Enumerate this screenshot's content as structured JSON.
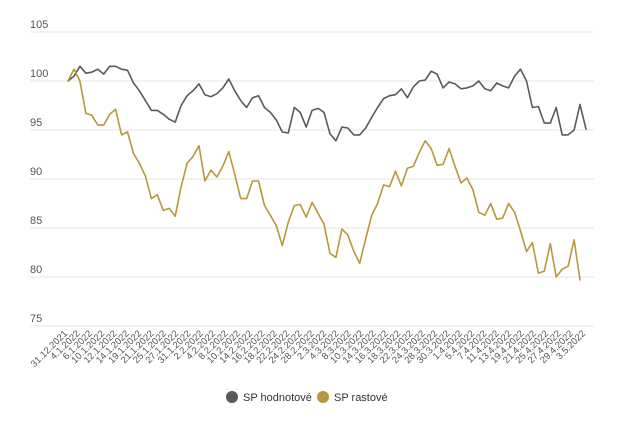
{
  "chart_data": {
    "type": "line",
    "title": "",
    "xlabel": "",
    "ylabel": "",
    "ylim": [
      75,
      105
    ],
    "yticks": [
      75,
      80,
      85,
      90,
      95,
      100,
      105
    ],
    "grid": true,
    "legend_position": "bottom",
    "x_tick_labels": [
      "31.12.2021",
      "4.1.2022",
      "6.1.2022",
      "10.1.2022",
      "12.1.2022",
      "14.1.2022",
      "19.1.2022",
      "21.1.2022",
      "25.1.2022",
      "27.1.2022",
      "31.1.2022",
      "2.2.2022",
      "4.2.2022",
      "8.2.2022",
      "10.2.2022",
      "14.2.2022",
      "16.2.2022",
      "18.2.2022",
      "22.2.2022",
      "24.2.2022",
      "28.2.2022",
      "2.3.2022",
      "4.3.2022",
      "8.3.2022",
      "10.3.2022",
      "14.3.2022",
      "16.3.2022",
      "18.3.2022",
      "22.3.2022",
      "24.3.2022",
      "28.3.2022",
      "30.3.2022",
      "1.4.2022",
      "5.4.2022",
      "7.4.2022",
      "11.4.2022",
      "13.4.2022",
      "19.4.2022",
      "21.4.2022",
      "25.4.2022",
      "27.4.2022",
      "29.4.2022",
      "3.5.2022"
    ],
    "series": [
      {
        "name": "SP hodnotové",
        "color": "#5a5a5a",
        "values": [
          100.0,
          100.5,
          101.5,
          100.8,
          100.9,
          101.2,
          100.7,
          101.5,
          101.5,
          101.2,
          101.1,
          99.8,
          99.0,
          98.0,
          97.0,
          97.0,
          96.6,
          96.1,
          95.8,
          97.5,
          98.5,
          99.0,
          99.7,
          98.6,
          98.4,
          98.7,
          99.3,
          100.2,
          99.0,
          98.0,
          97.3,
          98.3,
          98.5,
          97.3,
          96.8,
          96.0,
          94.8,
          94.7,
          97.3,
          96.8,
          95.3,
          97.0,
          97.2,
          96.8,
          94.6,
          93.9,
          95.3,
          95.2,
          94.5,
          94.5,
          95.2,
          96.3,
          97.3,
          98.2,
          98.5,
          98.6,
          99.2,
          98.3,
          99.4,
          100.0,
          100.1,
          101.0,
          100.7,
          99.3,
          99.9,
          99.7,
          99.2,
          99.3,
          99.5,
          100.0,
          99.2,
          99.0,
          99.8,
          99.5,
          99.3,
          100.5,
          101.2,
          100.0,
          97.3,
          97.4,
          95.7,
          95.7,
          97.3,
          94.5,
          94.5,
          95.0,
          97.6,
          95.1
        ]
      },
      {
        "name": "SP rastové",
        "color": "#b8983c",
        "values": [
          100.0,
          101.2,
          100.0,
          96.7,
          96.5,
          95.5,
          95.5,
          96.6,
          97.1,
          94.5,
          94.8,
          92.6,
          91.6,
          90.3,
          88.0,
          88.4,
          86.8,
          87.0,
          86.2,
          89.2,
          91.6,
          92.3,
          93.4,
          89.8,
          90.9,
          90.2,
          91.3,
          92.8,
          90.5,
          88.0,
          88.0,
          89.8,
          89.8,
          87.3,
          86.3,
          85.2,
          83.2,
          85.6,
          87.3,
          87.4,
          86.1,
          87.6,
          86.5,
          85.4,
          82.4,
          82.0,
          84.9,
          84.3,
          82.6,
          81.4,
          83.9,
          86.3,
          87.5,
          89.4,
          89.2,
          90.8,
          89.3,
          91.1,
          91.3,
          92.7,
          93.9,
          93.1,
          91.4,
          91.5,
          93.1,
          91.3,
          89.6,
          90.1,
          88.9,
          86.6,
          86.3,
          87.5,
          85.9,
          86.0,
          87.5,
          86.6,
          84.7,
          82.6,
          83.5,
          80.4,
          80.6,
          83.4,
          80.0,
          80.8,
          81.1,
          83.8,
          79.7
        ]
      }
    ]
  }
}
